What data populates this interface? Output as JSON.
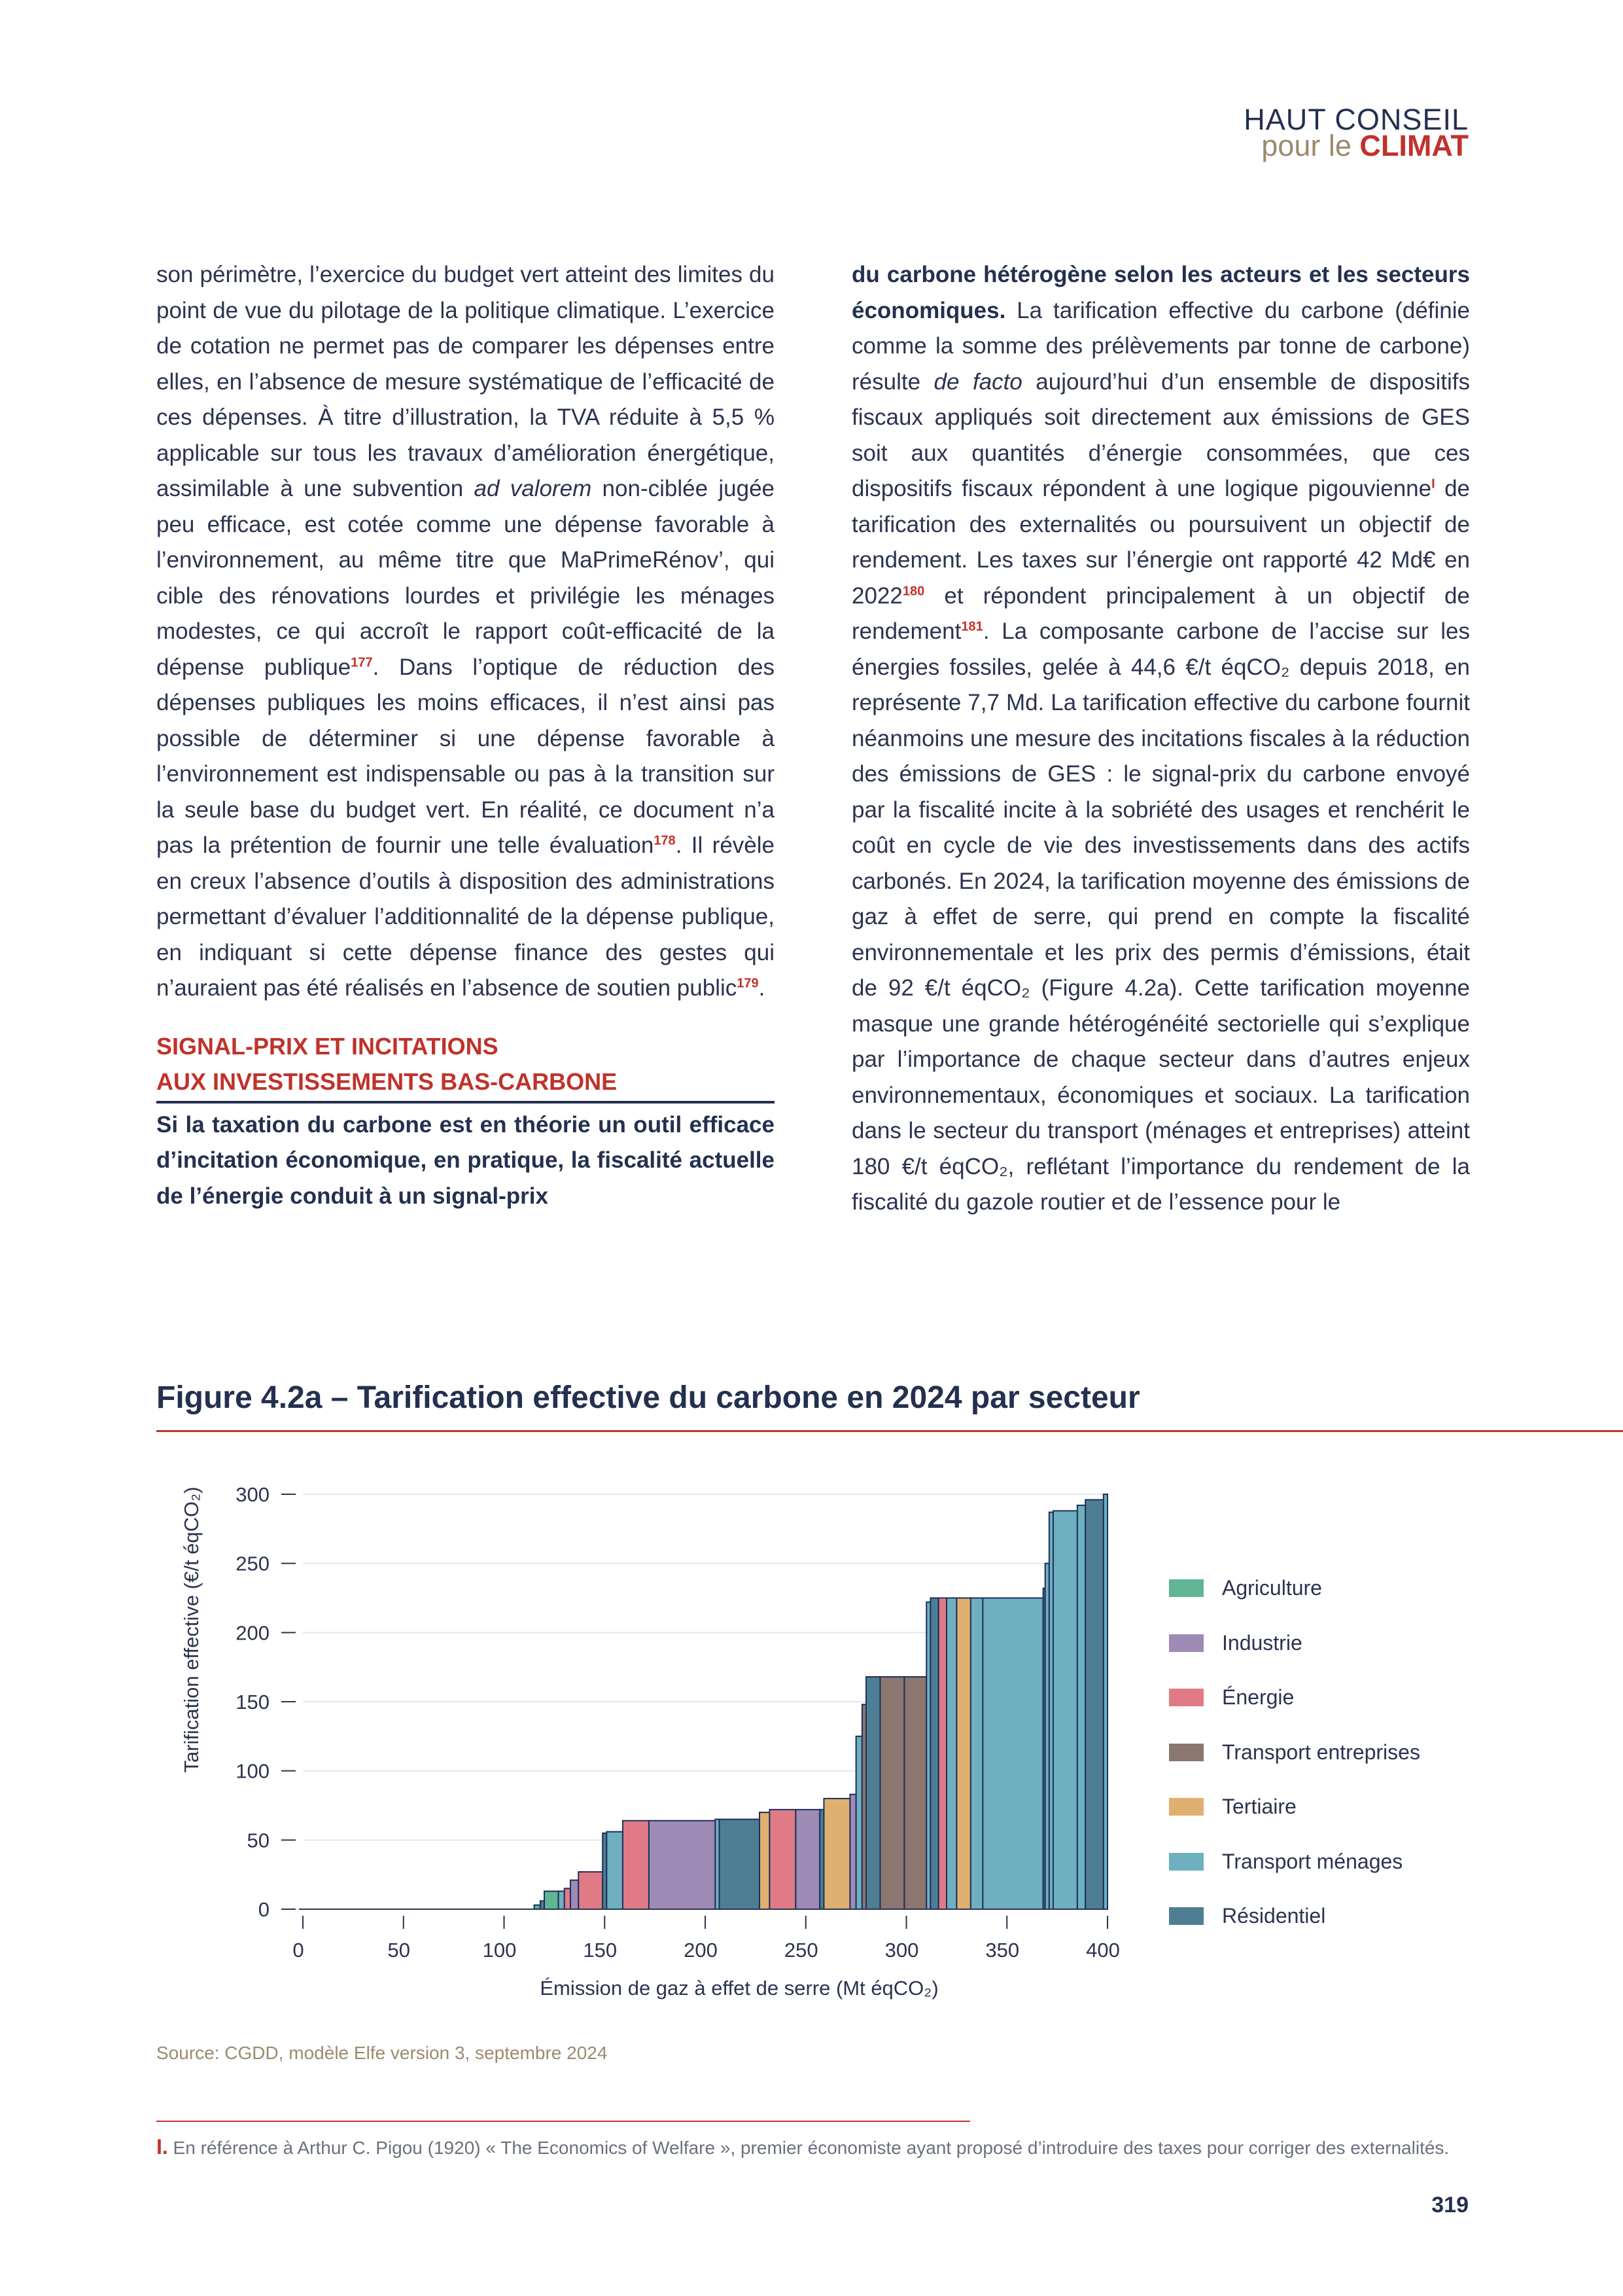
{
  "header": {
    "brand_line1": "HAUT CONSEIL",
    "brand_pour_le": "pour le ",
    "brand_climat": "CLIMAT"
  },
  "left_column": {
    "p1_a": "son périmètre, l’exercice du budget vert atteint des limites du point de vue du pilotage de la politique climatique. L’exercice de cotation ne permet pas de comparer les dépenses entre elles, en l’absence de mesure systématique de l’efficacité de ces dépenses. À titre d’illustration, la TVA réduite à 5,5 % applicable sur tous les travaux d’amélioration énergétique, assimilable à une subvention ",
    "p1_italic": "ad valorem",
    "p1_b": " non-ciblée jugée peu efficace, est cotée comme une dépense favorable à l’environnement, au même titre que MaPrimeRénov’, qui cible des rénovations lourdes et privilégie les ménages modestes, ce qui accroît le rapport coût-efficacité de la dépense publique",
    "fn177": "177",
    "p1_c": ". Dans l’optique de réduction des dépenses publiques les moins efficaces, il n’est ainsi pas possible de déterminer si une dépense favorable à l’environnement est indispensable ou pas à la transition sur la seule base du budget vert. En réalité, ce document n’a pas la prétention de fournir une telle évaluation",
    "fn178": "178",
    "p1_d": ". Il révèle en creux l’absence d’outils à disposition des administrations permettant d’évaluer l’additionnalité de la dépense publique, en indiquant si cette dépense finance des gestes qui n’auraient pas été réalisés en l’absence de soutien public",
    "fn179": "179",
    "p1_e": ".",
    "section_title_line1": "SIGNAL-PRIX ET INCITATIONS",
    "section_title_line2": "AUX INVESTISSEMENTS BAS-CARBONE",
    "lead": "Si la taxation du carbone est en théorie un outil efficace d’incitation économique, en pratique, la fiscalité actuelle de l’énergie conduit à un signal-prix"
  },
  "right_column": {
    "lead": "du carbone hétérogène selon les acteurs et les secteurs économiques.",
    "t1": " La tarification effective du carbone (définie comme la somme des prélèvements par tonne de carbone) résulte ",
    "t1_italic": "de facto",
    "t2": " aujourd’hui d’un ensemble de dispositifs fiscaux appliqués soit directement aux émissions de GES soit aux quantités d’énergie consommées, que ces dispositifs fiscaux répondent à une logique pigouvienne",
    "fnI": "I",
    "t3": " de tarification des externalités ou poursuivent un objectif de rendement. Les taxes sur l’énergie ont rapporté 42 Md€ en 2022",
    "fn180": "180",
    "t4": " et répondent principalement à un objectif de rendement",
    "fn181": "181",
    "t5": ". La composante carbone de l’accise sur les énergies fossiles, gelée à 44,6 €/t éqCO₂ depuis 2018, en représente 7,7 Md. La tarification effective du carbone fournit néanmoins une mesure des incitations fiscales à la réduction des émissions de GES : le signal-prix du carbone envoyé par la fiscalité incite à la sobriété des usages et renchérit le coût en cycle de vie des investissements dans des actifs carbonés. En 2024, la tarification moyenne des émissions de gaz à effet de serre, qui prend en compte la fiscalité environnementale et les prix des permis d’émissions, était de 92 €/t éqCO₂ (Figure 4.2a). Cette tarification moyenne masque une grande hétérogénéité sectorielle qui s’explique par l’importance de chaque secteur dans d’autres enjeux environnementaux, économiques et sociaux. La tarification dans le secteur du transport (ménages et entreprises) atteint 180 €/t éqCO₂, reflétant l’importance du rendement de la fiscalité du gazole routier et de l’essence pour le"
  },
  "figure": {
    "title": "Figure 4.2a – Tarification effective du carbone en 2024 par secteur",
    "source": "Source: CGDD, modèle Elfe version 3, septembre 2024"
  },
  "chart_data": {
    "type": "bar",
    "subtype": "step / cumulative-width bar chart",
    "xlabel": "Émission de gaz à effet de serre (Mt éqCO₂)",
    "ylabel": "Tarification effective (€/t éqCO₂)",
    "xlim": [
      0,
      400
    ],
    "ylim": [
      0,
      300
    ],
    "xticks": [
      0,
      50,
      100,
      150,
      200,
      250,
      300,
      350,
      400
    ],
    "yticks": [
      0,
      50,
      100,
      150,
      200,
      250,
      300
    ],
    "grid": "horizontal",
    "legend_position": "right",
    "categories": [
      {
        "name": "Agriculture",
        "color": "#5fb594"
      },
      {
        "name": "Industrie",
        "color": "#9d8bb5"
      },
      {
        "name": "Énergie",
        "color": "#e07b86"
      },
      {
        "name": "Transport entreprises",
        "color": "#8b7670"
      },
      {
        "name": "Tertiaire",
        "color": "#dfb06f"
      },
      {
        "name": "Transport ménages",
        "color": "#6fb0c0"
      },
      {
        "name": "Résidentiel",
        "color": "#4e7e94"
      }
    ],
    "bars": [
      {
        "x0": 0,
        "x1": 115,
        "y": 0,
        "sector": "Agriculture"
      },
      {
        "x0": 115,
        "x1": 118,
        "y": 3,
        "sector": "Agriculture"
      },
      {
        "x0": 118,
        "x1": 120,
        "y": 6,
        "sector": "Résidentiel"
      },
      {
        "x0": 120,
        "x1": 127,
        "y": 13,
        "sector": "Agriculture"
      },
      {
        "x0": 127,
        "x1": 130,
        "y": 13,
        "sector": "Transport ménages"
      },
      {
        "x0": 130,
        "x1": 133,
        "y": 15,
        "sector": "Énergie"
      },
      {
        "x0": 133,
        "x1": 137,
        "y": 21,
        "sector": "Industrie"
      },
      {
        "x0": 137,
        "x1": 149,
        "y": 27,
        "sector": "Énergie"
      },
      {
        "x0": 149,
        "x1": 151,
        "y": 55,
        "sector": "Résidentiel"
      },
      {
        "x0": 151,
        "x1": 159,
        "y": 56,
        "sector": "Transport ménages"
      },
      {
        "x0": 159,
        "x1": 172,
        "y": 64,
        "sector": "Énergie"
      },
      {
        "x0": 172,
        "x1": 205,
        "y": 64,
        "sector": "Industrie"
      },
      {
        "x0": 205,
        "x1": 207,
        "y": 65,
        "sector": "Transport ménages"
      },
      {
        "x0": 207,
        "x1": 227,
        "y": 65,
        "sector": "Résidentiel"
      },
      {
        "x0": 227,
        "x1": 232,
        "y": 70,
        "sector": "Tertiaire"
      },
      {
        "x0": 232,
        "x1": 245,
        "y": 72,
        "sector": "Énergie"
      },
      {
        "x0": 245,
        "x1": 257,
        "y": 72,
        "sector": "Industrie"
      },
      {
        "x0": 257,
        "x1": 259,
        "y": 72,
        "sector": "Résidentiel"
      },
      {
        "x0": 259,
        "x1": 272,
        "y": 80,
        "sector": "Tertiaire"
      },
      {
        "x0": 272,
        "x1": 275,
        "y": 83,
        "sector": "Industrie"
      },
      {
        "x0": 275,
        "x1": 278,
        "y": 125,
        "sector": "Transport ménages"
      },
      {
        "x0": 278,
        "x1": 280,
        "y": 148,
        "sector": "Transport entreprises"
      },
      {
        "x0": 280,
        "x1": 287,
        "y": 168,
        "sector": "Résidentiel"
      },
      {
        "x0": 287,
        "x1": 299,
        "y": 168,
        "sector": "Transport entreprises"
      },
      {
        "x0": 299,
        "x1": 310,
        "y": 168,
        "sector": "Transport entreprises"
      },
      {
        "x0": 310,
        "x1": 312,
        "y": 222,
        "sector": "Transport ménages"
      },
      {
        "x0": 312,
        "x1": 316,
        "y": 225,
        "sector": "Résidentiel"
      },
      {
        "x0": 316,
        "x1": 320,
        "y": 225,
        "sector": "Énergie"
      },
      {
        "x0": 320,
        "x1": 325,
        "y": 225,
        "sector": "Transport ménages"
      },
      {
        "x0": 325,
        "x1": 332,
        "y": 225,
        "sector": "Tertiaire"
      },
      {
        "x0": 332,
        "x1": 338,
        "y": 225,
        "sector": "Transport ménages"
      },
      {
        "x0": 338,
        "x1": 368,
        "y": 225,
        "sector": "Transport ménages"
      },
      {
        "x0": 368,
        "x1": 369,
        "y": 232,
        "sector": "Résidentiel"
      },
      {
        "x0": 369,
        "x1": 371,
        "y": 250,
        "sector": "Transport ménages"
      },
      {
        "x0": 371,
        "x1": 373,
        "y": 287,
        "sector": "Transport ménages"
      },
      {
        "x0": 373,
        "x1": 385,
        "y": 288,
        "sector": "Transport ménages"
      },
      {
        "x0": 385,
        "x1": 389,
        "y": 292,
        "sector": "Transport ménages"
      },
      {
        "x0": 389,
        "x1": 398,
        "y": 296,
        "sector": "Résidentiel"
      },
      {
        "x0": 398,
        "x1": 400,
        "y": 300,
        "sector": "Transport ménages"
      }
    ]
  },
  "footnote": {
    "mark": "I.",
    "text": " En référence à Arthur C. Pigou (1920) « The Economics of Welfare », premier économiste ayant proposé d’introduire des taxes pour corriger des externalités."
  },
  "page_number": "319"
}
